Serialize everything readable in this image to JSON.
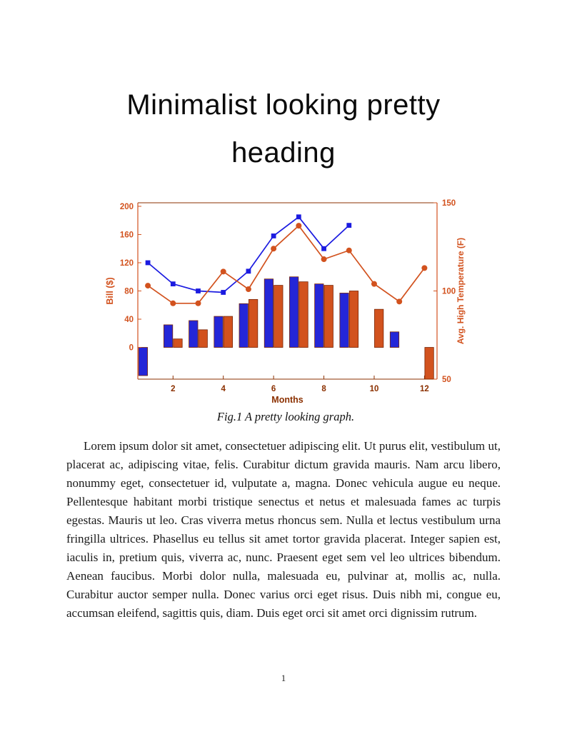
{
  "heading": {
    "line1": "Minimalist looking pretty",
    "line2": "heading"
  },
  "figure": {
    "caption": "Fig.1 A pretty looking graph."
  },
  "body": {
    "paragraph": "Lorem ipsum dolor sit amet, consectetuer adipiscing elit. Ut purus elit, vestibulum ut, placerat ac, adipiscing vitae, felis. Curabitur dictum gravida mauris. Nam arcu libero, nonummy eget, consectetuer id, vulputate a, magna. Donec vehicula augue eu neque. Pellentesque habitant morbi tristique senectus et netus et malesuada fames ac turpis egestas. Mauris ut leo. Cras viverra metus rhoncus sem. Nulla et lectus vestibulum urna fringilla ultrices. Phasellus eu tellus sit amet tortor gravida placerat. Integer sapien est, iaculis in, pretium quis, viverra ac, nunc. Praesent eget sem vel leo ultrices bibendum. Aenean faucibus. Morbi dolor nulla, malesuada eu, pulvinar at, mollis ac, nulla. Curabitur auctor semper nulla. Donec varius orci eget risus. Duis nibh mi, congue eu, accumsan eleifend, sagittis quis, diam. Duis eget orci sit amet orci dignissim rutrum."
  },
  "page": {
    "number": "1"
  },
  "chart_data": {
    "type": "bar",
    "subtype": "grouped bars with two overlay lines, dual y-axis",
    "title": "",
    "xlabel": "Months",
    "x_ticks": [
      2,
      4,
      6,
      8,
      10,
      12
    ],
    "xlim": [
      0.6,
      12.5
    ],
    "months": [
      1,
      2,
      3,
      4,
      5,
      6,
      7,
      8,
      9,
      10,
      11,
      12
    ],
    "left_axis": {
      "label": "Bill ($)",
      "ticks": [
        0,
        40,
        80,
        120,
        160,
        200
      ],
      "range": [
        -45,
        205
      ]
    },
    "right_axis": {
      "label": "Avg. High Temperature (F)",
      "ticks": [
        50,
        100,
        150
      ],
      "range": [
        50,
        150
      ]
    },
    "grid": false,
    "legend": null,
    "series": [
      {
        "name": "bill-bars-blue",
        "type": "bar",
        "axis": "left",
        "color": "#2426d8",
        "edge": "#7a2606",
        "values": [
          -40,
          32,
          38,
          44,
          62,
          97,
          100,
          90,
          77,
          0,
          22,
          0
        ]
      },
      {
        "name": "bill-bars-orange",
        "type": "bar",
        "axis": "left",
        "color": "#d2521e",
        "edge": "#7a2606",
        "values": [
          0,
          12,
          25,
          44,
          68,
          88,
          93,
          88,
          80,
          54,
          0,
          -45
        ]
      },
      {
        "name": "bill-line-blue",
        "type": "line",
        "axis": "left",
        "marker": "square",
        "color": "#1b1be0",
        "values": [
          120,
          90,
          80,
          78,
          108,
          158,
          185,
          140,
          173,
          null,
          null,
          null
        ]
      },
      {
        "name": "temperature-line-orange",
        "type": "line",
        "axis": "right",
        "marker": "circle",
        "color": "#d2521e",
        "values": [
          103,
          93,
          93,
          111,
          101,
          124,
          137,
          118,
          123,
          104,
          94,
          113
        ]
      }
    ],
    "colors": {
      "axis_left": "#d2521e",
      "axis_right": "#d2521e",
      "axis_x": "#8b3000"
    }
  }
}
